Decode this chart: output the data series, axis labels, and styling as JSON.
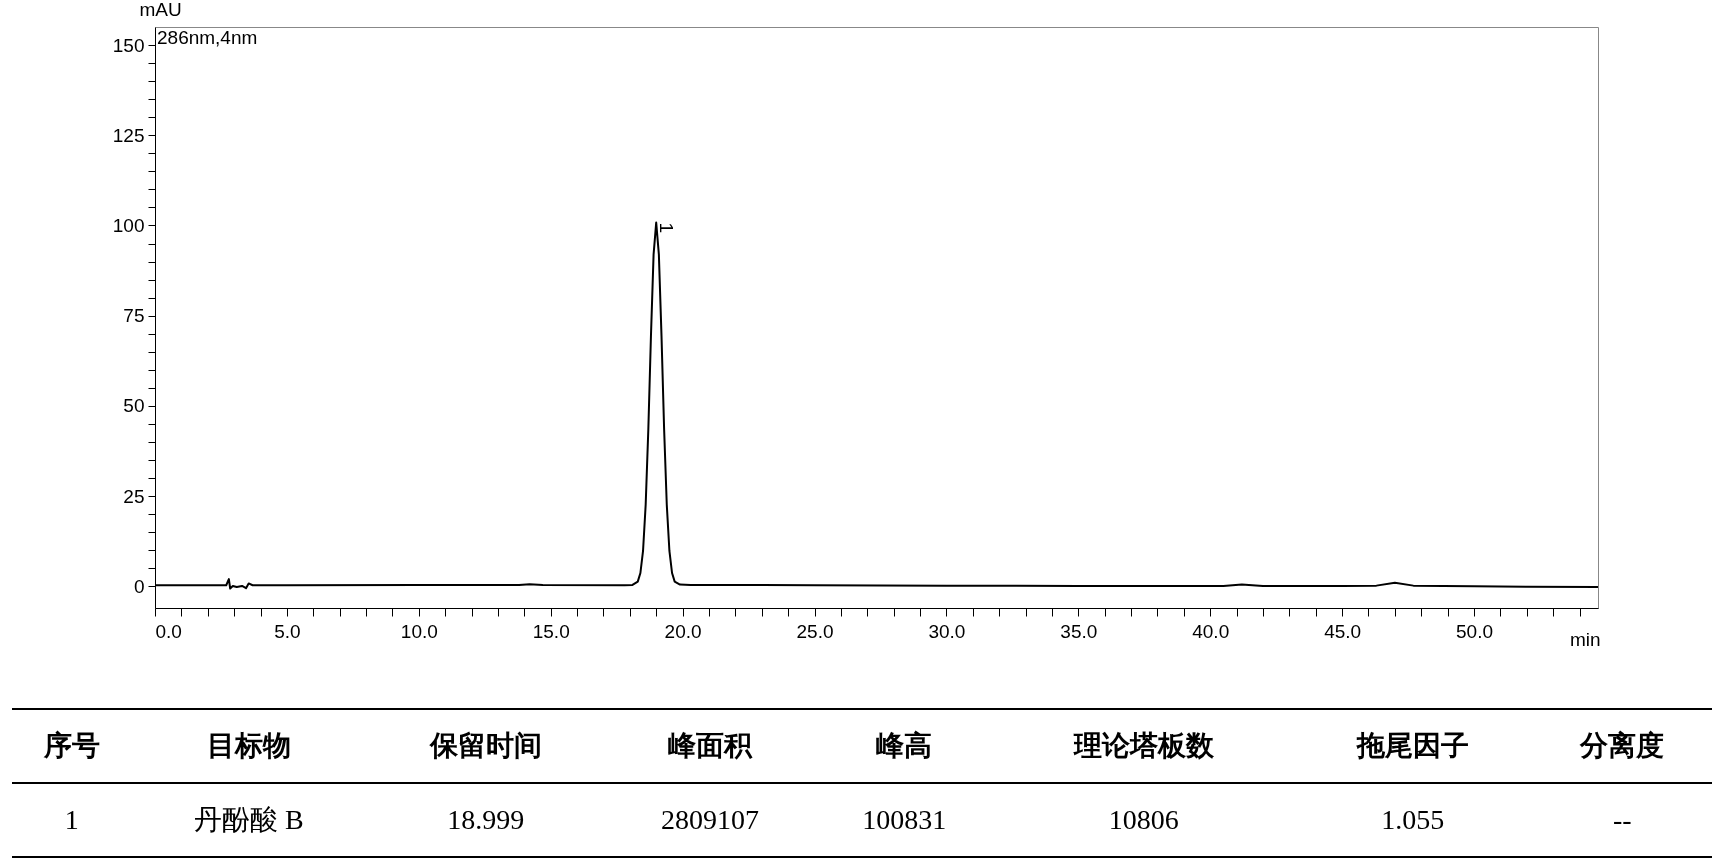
{
  "chart_data": {
    "type": "line",
    "xlabel": "min",
    "ylabel": "mAU",
    "color": "#000000",
    "grid": false,
    "marker": "none",
    "line_style": "solid",
    "xlim": [
      0,
      54.7
    ],
    "ylim": [
      -6,
      155
    ],
    "xticks": [
      {
        "value": 0,
        "label": "0.0"
      },
      {
        "value": 1,
        "label": null
      },
      {
        "value": 2,
        "label": null
      },
      {
        "value": 3,
        "label": null
      },
      {
        "value": 4,
        "label": null
      },
      {
        "value": 5,
        "label": "5.0"
      },
      {
        "value": 6,
        "label": null
      },
      {
        "value": 7,
        "label": null
      },
      {
        "value": 8,
        "label": null
      },
      {
        "value": 9,
        "label": null
      },
      {
        "value": 10,
        "label": "10.0"
      },
      {
        "value": 11,
        "label": null
      },
      {
        "value": 12,
        "label": null
      },
      {
        "value": 13,
        "label": null
      },
      {
        "value": 14,
        "label": null
      },
      {
        "value": 15,
        "label": "15.0"
      },
      {
        "value": 16,
        "label": null
      },
      {
        "value": 17,
        "label": null
      },
      {
        "value": 18,
        "label": null
      },
      {
        "value": 19,
        "label": null
      },
      {
        "value": 20,
        "label": "20.0"
      },
      {
        "value": 21,
        "label": null
      },
      {
        "value": 22,
        "label": null
      },
      {
        "value": 23,
        "label": null
      },
      {
        "value": 24,
        "label": null
      },
      {
        "value": 25,
        "label": "25.0"
      },
      {
        "value": 26,
        "label": null
      },
      {
        "value": 27,
        "label": null
      },
      {
        "value": 28,
        "label": null
      },
      {
        "value": 29,
        "label": null
      },
      {
        "value": 30,
        "label": "30.0"
      },
      {
        "value": 31,
        "label": null
      },
      {
        "value": 32,
        "label": null
      },
      {
        "value": 33,
        "label": null
      },
      {
        "value": 34,
        "label": null
      },
      {
        "value": 35,
        "label": "35.0"
      },
      {
        "value": 36,
        "label": null
      },
      {
        "value": 37,
        "label": null
      },
      {
        "value": 38,
        "label": null
      },
      {
        "value": 39,
        "label": null
      },
      {
        "value": 40,
        "label": "40.0"
      },
      {
        "value": 41,
        "label": null
      },
      {
        "value": 42,
        "label": null
      },
      {
        "value": 43,
        "label": null
      },
      {
        "value": 44,
        "label": null
      },
      {
        "value": 45,
        "label": "45.0"
      },
      {
        "value": 46,
        "label": null
      },
      {
        "value": 47,
        "label": null
      },
      {
        "value": 48,
        "label": null
      },
      {
        "value": 49,
        "label": null
      },
      {
        "value": 50,
        "label": "50.0"
      },
      {
        "value": 51,
        "label": null
      },
      {
        "value": 52,
        "label": null
      },
      {
        "value": 53,
        "label": null
      },
      {
        "value": 54,
        "label": null
      }
    ],
    "yticks": [
      0,
      {
        "value": 5,
        "label": null
      },
      {
        "value": 10,
        "label": null
      },
      {
        "value": 15,
        "label": null
      },
      {
        "value": 20,
        "label": null
      },
      25,
      {
        "value": 30,
        "label": null
      },
      {
        "value": 35,
        "label": null
      },
      {
        "value": 40,
        "label": null
      },
      {
        "value": 45,
        "label": null
      },
      50,
      {
        "value": 55,
        "label": null
      },
      {
        "value": 60,
        "label": null
      },
      {
        "value": 65,
        "label": null
      },
      {
        "value": 70,
        "label": null
      },
      75,
      {
        "value": 80,
        "label": null
      },
      {
        "value": 85,
        "label": null
      },
      {
        "value": 90,
        "label": null
      },
      {
        "value": 95,
        "label": null
      },
      100,
      {
        "value": 105,
        "label": null
      },
      {
        "value": 110,
        "label": null
      },
      {
        "value": 115,
        "label": null
      },
      {
        "value": 120,
        "label": null
      },
      125,
      {
        "value": 130,
        "label": null
      },
      {
        "value": 135,
        "label": null
      },
      {
        "value": 140,
        "label": null
      },
      {
        "value": 145,
        "label": null
      },
      150
    ],
    "x": [
      0,
      2.7,
      2.8,
      2.85,
      2.95,
      3.1,
      3.3,
      3.45,
      3.55,
      3.7,
      5,
      10,
      13.8,
      14.2,
      14.7,
      17.8,
      18.1,
      18.3,
      18.4,
      18.5,
      18.6,
      18.7,
      18.8,
      18.9,
      18.999,
      19.1,
      19.2,
      19.3,
      19.4,
      19.5,
      19.6,
      19.7,
      19.9,
      20.3,
      25,
      30,
      35,
      40.5,
      41.2,
      42,
      45,
      46.3,
      47,
      47.7,
      50,
      52,
      54.7
    ],
    "values": [
      0.3,
      0.3,
      2.0,
      -0.6,
      0.1,
      -0.2,
      0.1,
      -0.5,
      0.8,
      0.3,
      0.3,
      0.4,
      0.4,
      0.6,
      0.4,
      0.3,
      0.4,
      1.3,
      3.7,
      9.8,
      22.6,
      43.4,
      69.4,
      92.0,
      100.8,
      92.0,
      69.4,
      43.4,
      22.6,
      9.8,
      3.7,
      1.3,
      0.5,
      0.4,
      0.3,
      0.2,
      0.1,
      0.1,
      0.5,
      0.1,
      0.1,
      0.2,
      1.0,
      0.2,
      0.0,
      -0.1,
      -0.2
    ],
    "annotations": [
      {
        "text": "1",
        "x": 18.999,
        "y": 100.8
      },
      "286nm,4nm",
      "序号",
      "目标物",
      "保留时间",
      "峰面积",
      "峰高",
      "理论塔板数",
      "拖尾因子",
      "分离度",
      "1",
      "丹酚酸 B",
      "18.999",
      "2809107",
      "100831",
      "10806",
      "1.055",
      "--"
    ]
  }
}
